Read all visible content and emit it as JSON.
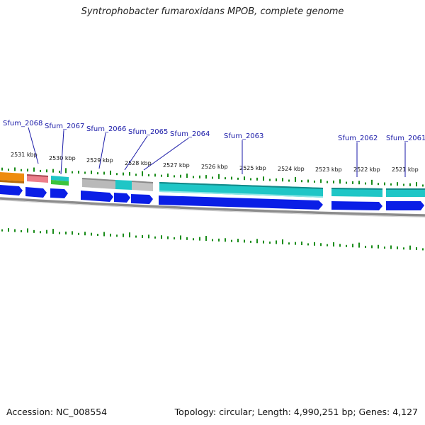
{
  "title": "Syntrophobacter fumaroxidans MPOB, complete genome",
  "footer": {
    "accession": "Accession: NC_008554",
    "stats": "Topology: circular; Length: 4,990,251 bp; Genes: 4,127"
  },
  "colors": {
    "forward_gene": "#0a1ee6",
    "cds_teal": "#1fc6c6",
    "cds_grey": "#b9b9b9",
    "cds_orange": "#ee8c10",
    "cds_pink": "#ec7f8b",
    "cds_green": "#3cc43c",
    "tick_green": "#1a8c1a",
    "backbone": "#8c8c8c",
    "label_blue": "#1a1aa8"
  },
  "axis": {
    "ticks": [
      {
        "label": "2531 kbp"
      },
      {
        "label": "2530 kbp"
      },
      {
        "label": "2529 kbp"
      },
      {
        "label": "2528 kbp"
      },
      {
        "label": "2527 kbp"
      },
      {
        "label": "2526 kbp"
      },
      {
        "label": "2525 kbp"
      },
      {
        "label": "2524 kbp"
      },
      {
        "label": "2523 kbp"
      },
      {
        "label": "2522 kbp"
      },
      {
        "label": "2521 kbp"
      }
    ]
  },
  "genes": [
    {
      "label": "Sfum_2068"
    },
    {
      "label": "Sfum_2067"
    },
    {
      "label": "Sfum_2066"
    },
    {
      "label": "Sfum_2065"
    },
    {
      "label": "Sfum_2064"
    },
    {
      "label": "Sfum_2063"
    },
    {
      "label": "Sfum_2062"
    },
    {
      "label": "Sfum_2061"
    }
  ]
}
